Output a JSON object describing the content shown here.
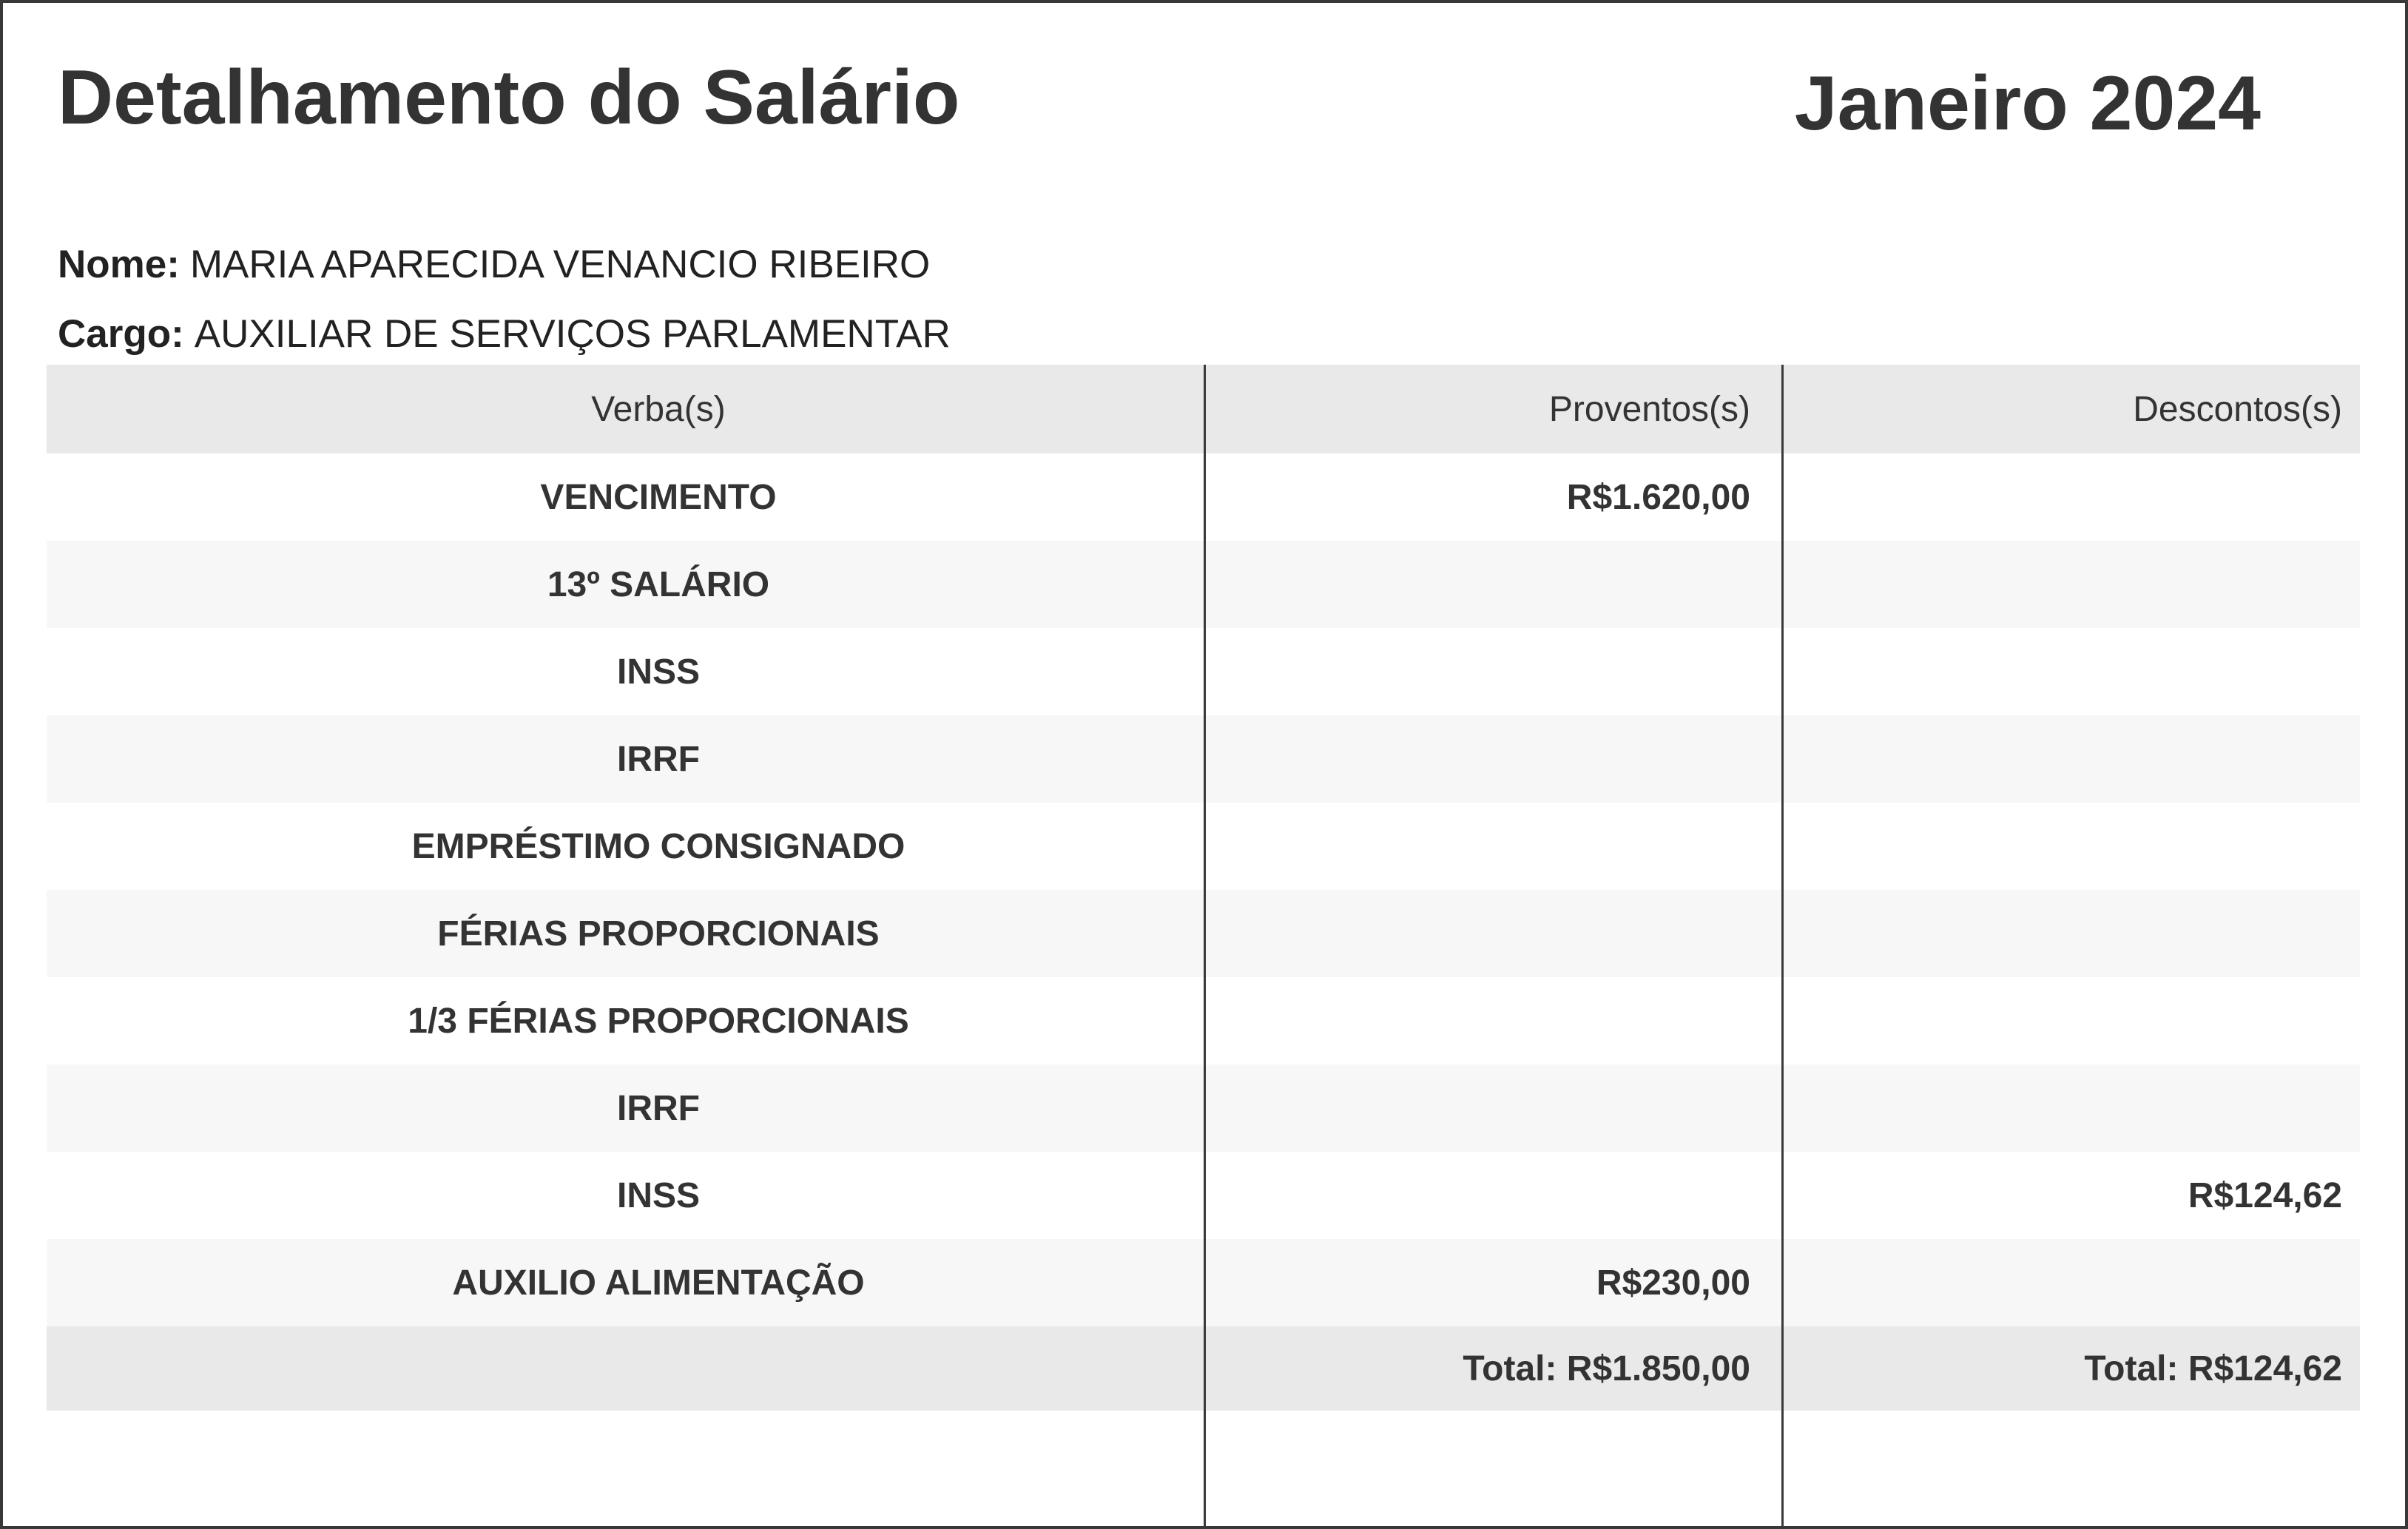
{
  "page": {
    "title": "Detalhamento do Salário",
    "period": "Janeiro 2024"
  },
  "employee": {
    "name_label": "Nome:",
    "name": "MARIA APARECIDA VENANCIO RIBEIRO",
    "role_label": "Cargo:",
    "role": "AUXILIAR DE SERVIÇOS PARLAMENTAR"
  },
  "table": {
    "headers": [
      "Verba(s)",
      "Proventos(s)",
      "Descontos(s)"
    ],
    "rows": [
      {
        "verba": "VENCIMENTO",
        "proventos": "R$1.620,00",
        "descontos": ""
      },
      {
        "verba": "13º SALÁRIO",
        "proventos": "",
        "descontos": ""
      },
      {
        "verba": "INSS",
        "proventos": "",
        "descontos": ""
      },
      {
        "verba": "IRRF",
        "proventos": "",
        "descontos": ""
      },
      {
        "verba": "EMPRÉSTIMO CONSIGNADO",
        "proventos": "",
        "descontos": ""
      },
      {
        "verba": "FÉRIAS PROPORCIONAIS",
        "proventos": "",
        "descontos": ""
      },
      {
        "verba": "1/3 FÉRIAS PROPORCIONAIS",
        "proventos": "",
        "descontos": ""
      },
      {
        "verba": "IRRF",
        "proventos": "",
        "descontos": ""
      },
      {
        "verba": "INSS",
        "proventos": "",
        "descontos": "R$124,62"
      },
      {
        "verba": "AUXILIO ALIMENTAÇÃO",
        "proventos": "R$230,00",
        "descontos": ""
      }
    ],
    "totals": {
      "proventos": "Total: R$1.850,00",
      "descontos": "Total: R$124,62"
    }
  },
  "colors": {
    "border": "#383838",
    "divider": "#3a3a3a",
    "header_bg": "#e9e9e9",
    "alt_row_bg": "#f7f7f7",
    "total_bg": "#e9e9e9",
    "text": "#333333"
  }
}
